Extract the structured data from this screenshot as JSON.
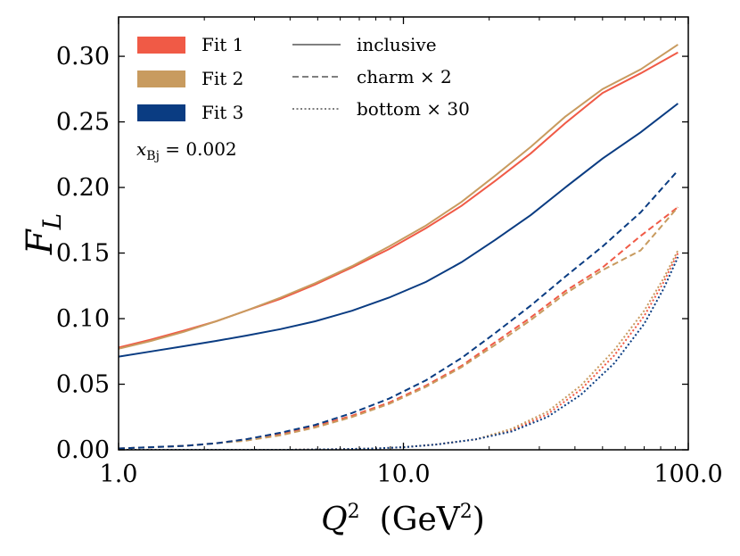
{
  "chart_data": {
    "type": "line",
    "title": "",
    "xlabel": "Q",
    "xlabel_sup": "2",
    "xunit": "(GeV",
    "xunit_sup": "2",
    "xunit_close": ")",
    "ylabel": "F",
    "ylabel_sub": "L",
    "xscale": "log",
    "xlim": [
      1.0,
      100.0
    ],
    "ylim": [
      0.0,
      0.33
    ],
    "xticks": [
      {
        "value": 1.0,
        "label": "1.0"
      },
      {
        "value": 10.0,
        "label": "10.0"
      },
      {
        "value": 100.0,
        "label": "100.0"
      }
    ],
    "yticks": [
      {
        "value": 0.0,
        "label": "0.00"
      },
      {
        "value": 0.05,
        "label": "0.05"
      },
      {
        "value": 0.1,
        "label": "0.10"
      },
      {
        "value": 0.15,
        "label": "0.15"
      },
      {
        "value": 0.2,
        "label": "0.20"
      },
      {
        "value": 0.25,
        "label": "0.25"
      },
      {
        "value": 0.3,
        "label": "0.30"
      }
    ],
    "annotation": {
      "var": "x",
      "sub": "Bj",
      "rest": " = 0.002"
    },
    "legend_fits": [
      {
        "label": "Fit 1",
        "color": "#f05a46"
      },
      {
        "label": "Fit 2",
        "color": "#c89b5f"
      },
      {
        "label": "Fit 3",
        "color": "#0a3c82"
      }
    ],
    "legend_styles": [
      {
        "label": "inclusive",
        "style": "solid"
      },
      {
        "label": "charm × 2",
        "style": "dashed"
      },
      {
        "label": "bottom × 30",
        "style": "dotted"
      }
    ],
    "series": [
      {
        "name": "Fit 1 inclusive",
        "fit": 0,
        "style": "solid",
        "x": [
          1.0,
          1.3,
          1.7,
          2.2,
          2.8,
          3.7,
          4.9,
          6.6,
          8.9,
          12,
          16,
          21,
          28,
          37,
          50,
          68,
          92
        ],
        "y": [
          0.078,
          0.084,
          0.091,
          0.098,
          0.106,
          0.115,
          0.126,
          0.139,
          0.153,
          0.169,
          0.186,
          0.205,
          0.226,
          0.249,
          0.272,
          0.287,
          0.303
        ]
      },
      {
        "name": "Fit 2 inclusive",
        "fit": 1,
        "style": "solid",
        "x": [
          1.0,
          1.3,
          1.7,
          2.2,
          2.8,
          3.7,
          4.9,
          6.6,
          8.9,
          12,
          16,
          21,
          28,
          37,
          50,
          68,
          92
        ],
        "y": [
          0.077,
          0.083,
          0.09,
          0.098,
          0.106,
          0.116,
          0.127,
          0.14,
          0.155,
          0.171,
          0.189,
          0.209,
          0.231,
          0.254,
          0.275,
          0.29,
          0.309
        ]
      },
      {
        "name": "Fit 3 inclusive",
        "fit": 2,
        "style": "solid",
        "x": [
          1.0,
          1.3,
          1.7,
          2.2,
          2.8,
          3.7,
          4.9,
          6.6,
          8.9,
          12,
          16,
          21,
          28,
          37,
          50,
          68,
          92
        ],
        "y": [
          0.071,
          0.075,
          0.079,
          0.083,
          0.087,
          0.092,
          0.098,
          0.106,
          0.116,
          0.128,
          0.143,
          0.16,
          0.179,
          0.2,
          0.222,
          0.242,
          0.264
        ]
      },
      {
        "name": "Fit 1 charm × 2",
        "fit": 0,
        "style": "dashed",
        "x": [
          1.0,
          1.3,
          1.7,
          2.2,
          2.8,
          3.7,
          4.9,
          6.6,
          8.9,
          12,
          16,
          21,
          28,
          37,
          50,
          68,
          92
        ],
        "y": [
          0.001,
          0.002,
          0.003,
          0.005,
          0.008,
          0.012,
          0.018,
          0.026,
          0.036,
          0.049,
          0.064,
          0.082,
          0.101,
          0.121,
          0.139,
          0.163,
          0.185
        ]
      },
      {
        "name": "Fit 2 charm × 2",
        "fit": 1,
        "style": "dashed",
        "x": [
          1.0,
          1.3,
          1.7,
          2.2,
          2.8,
          3.7,
          4.9,
          6.6,
          8.9,
          12,
          16,
          21,
          28,
          37,
          50,
          68,
          92
        ],
        "y": [
          0.001,
          0.002,
          0.003,
          0.005,
          0.007,
          0.011,
          0.017,
          0.025,
          0.035,
          0.048,
          0.063,
          0.08,
          0.099,
          0.119,
          0.137,
          0.152,
          0.185
        ]
      },
      {
        "name": "Fit 3 charm × 2",
        "fit": 2,
        "style": "dashed",
        "x": [
          1.0,
          1.3,
          1.7,
          2.2,
          2.8,
          3.7,
          4.9,
          6.6,
          8.9,
          12,
          16,
          21,
          28,
          37,
          50,
          68,
          92
        ],
        "y": [
          0.001,
          0.002,
          0.003,
          0.005,
          0.008,
          0.013,
          0.019,
          0.028,
          0.039,
          0.053,
          0.07,
          0.089,
          0.11,
          0.132,
          0.155,
          0.181,
          0.213
        ]
      },
      {
        "name": "Fit 1 bottom × 30",
        "fit": 0,
        "style": "dotted",
        "x": [
          1.0,
          2.0,
          4.0,
          6.0,
          8.0,
          10,
          13,
          18,
          24,
          32,
          42,
          55,
          70,
          82,
          92
        ],
        "y": [
          0.0,
          0.0,
          0.0,
          0.0005,
          0.001,
          0.002,
          0.004,
          0.008,
          0.015,
          0.027,
          0.046,
          0.072,
          0.102,
          0.128,
          0.15
        ]
      },
      {
        "name": "Fit 2 bottom × 30",
        "fit": 1,
        "style": "dotted",
        "x": [
          1.0,
          2.0,
          4.0,
          6.0,
          8.0,
          10,
          13,
          18,
          24,
          32,
          42,
          55,
          70,
          82,
          92
        ],
        "y": [
          0.0,
          0.0,
          0.0,
          0.0005,
          0.001,
          0.002,
          0.004,
          0.008,
          0.016,
          0.029,
          0.049,
          0.076,
          0.106,
          0.131,
          0.152
        ]
      },
      {
        "name": "Fit 3 bottom × 30",
        "fit": 2,
        "style": "dotted",
        "x": [
          1.0,
          2.0,
          4.0,
          6.0,
          8.0,
          10,
          13,
          18,
          24,
          32,
          42,
          55,
          70,
          82,
          92
        ],
        "y": [
          0.0,
          0.0,
          0.0,
          0.0005,
          0.001,
          0.002,
          0.004,
          0.008,
          0.014,
          0.025,
          0.042,
          0.066,
          0.096,
          0.123,
          0.147
        ]
      }
    ]
  }
}
